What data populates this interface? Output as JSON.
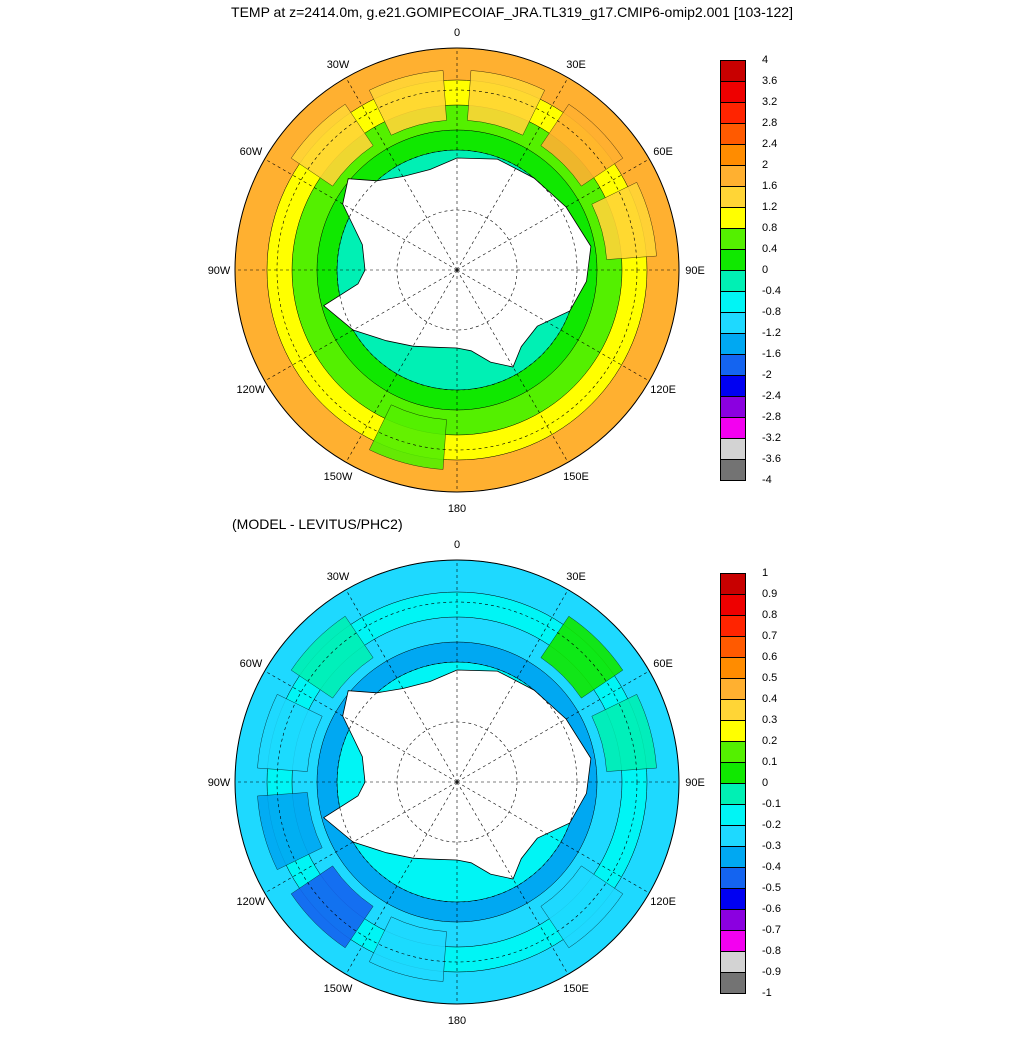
{
  "figure": {
    "title": "TEMP at z=2414.0m, g.e21.GOMIPECOIAF_JRA.TL319_g17.CMIP6-omip2.001 [103-122]",
    "subtitle": "(MODEL - LEVITUS/PHC2)"
  },
  "colors": {
    "scale": [
      "#737373",
      "#d3d3d3",
      "#f300f0",
      "#8b00e0",
      "#0000f2",
      "#1464f0",
      "#00a8f2",
      "#1ed9ff",
      "#00f5f5",
      "#00f0b4",
      "#10e800",
      "#54f000",
      "#ffff00",
      "#ffd536",
      "#ffb030",
      "#ff8c00",
      "#ff5a00",
      "#ff2400",
      "#ee0000",
      "#c80000"
    ],
    "land": "#ffffff",
    "grid": "#000000"
  },
  "map_labels": {
    "lon_0": "0",
    "lon_30e": "30E",
    "lon_60e": "60E",
    "lon_90e": "90E",
    "lon_120e": "120E",
    "lon_150e": "150E",
    "lon_180": "180",
    "lon_150w": "150W",
    "lon_120w": "120W",
    "lon_90w": "90W",
    "lon_60w": "60W",
    "lon_30w": "30W"
  },
  "panels": [
    {
      "field": "TEMP model (degC)",
      "levels": [
        "-4",
        "-3.6",
        "-3.2",
        "-2.8",
        "-2.4",
        "-2",
        "-1.6",
        "-1.2",
        "-0.8",
        "-0.4",
        "0",
        "0.4",
        "0.8",
        "1.2",
        "1.6",
        "2",
        "2.4",
        "2.8",
        "3.2",
        "3.6",
        "4"
      ],
      "ring_color_indices": [
        14,
        12,
        11,
        10,
        9
      ],
      "sector_color_offsets": [
        1,
        2,
        1,
        0,
        0,
        0,
        -1,
        0,
        0,
        0,
        1,
        1
      ]
    },
    {
      "field": "MODEL - LEVITUS/PHC2 (degC)",
      "levels": [
        "-1",
        "-0.9",
        "-0.8",
        "-0.7",
        "-0.6",
        "-0.5",
        "-0.4",
        "-0.3",
        "-0.2",
        "-0.1",
        "0",
        "0.1",
        "0.2",
        "0.3",
        "0.4",
        "0.5",
        "0.6",
        "0.7",
        "0.8",
        "0.9",
        "1"
      ],
      "ring_color_indices": [
        7,
        8,
        7,
        6,
        8
      ],
      "sector_color_offsets": [
        0,
        2,
        1,
        0,
        -1,
        0,
        -1,
        -3,
        -2,
        -1,
        1,
        0
      ]
    }
  ]
}
